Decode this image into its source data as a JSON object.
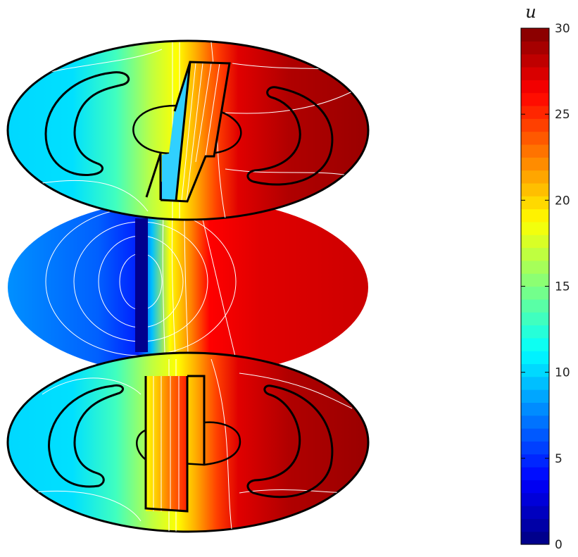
{
  "chart_data": {
    "type": "heatmap",
    "description_kind": "3d-slice-contour",
    "colorbar": {
      "title": "u",
      "range": [
        0,
        30
      ],
      "ticks": [
        {
          "value": 0,
          "label": "0"
        },
        {
          "value": 5,
          "label": "5"
        },
        {
          "value": 10,
          "label": "10"
        },
        {
          "value": 15,
          "label": "15"
        },
        {
          "value": 20,
          "label": "20"
        },
        {
          "value": 25,
          "label": "25"
        },
        {
          "value": 30,
          "label": "30"
        }
      ],
      "colormap": "jet",
      "levels": 40
    },
    "slices": [
      {
        "name": "top",
        "left_value": 10,
        "right_value": 29
      },
      {
        "name": "middle",
        "left_value": 8,
        "right_value": 27
      },
      {
        "name": "bottom",
        "left_value": 10,
        "right_value": 29
      }
    ]
  }
}
